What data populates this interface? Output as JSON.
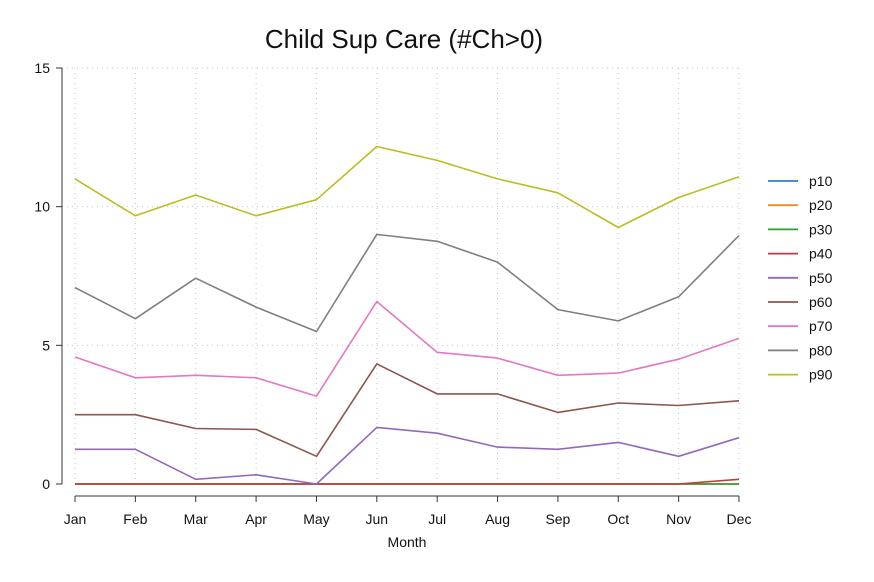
{
  "chart_data": {
    "type": "line",
    "title": "Child Sup Care (#Ch>0)",
    "xlabel": "Month",
    "ylabel": "",
    "ylim": [
      0,
      15
    ],
    "yticks": [
      0,
      5,
      10,
      15
    ],
    "grid": true,
    "legend_position": "right",
    "categories": [
      "Jan",
      "Feb",
      "Mar",
      "Apr",
      "May",
      "Jun",
      "Jul",
      "Aug",
      "Sep",
      "Oct",
      "Nov",
      "Dec"
    ],
    "series": [
      {
        "name": "p10",
        "color": "#3a78c9",
        "values": [
          0,
          0,
          0,
          0,
          0,
          0,
          0,
          0,
          0,
          0,
          0,
          0
        ]
      },
      {
        "name": "p20",
        "color": "#f28a1e",
        "values": [
          0,
          0,
          0,
          0,
          0,
          0,
          0,
          0,
          0,
          0,
          0,
          0
        ]
      },
      {
        "name": "p30",
        "color": "#2ca02c",
        "values": [
          0,
          0,
          0,
          0,
          0,
          0,
          0,
          0,
          0,
          0,
          0,
          0
        ]
      },
      {
        "name": "p40",
        "color": "#c23b3b",
        "values": [
          0,
          0,
          0,
          0,
          0,
          0,
          0,
          0,
          0,
          0,
          0,
          0.17
        ]
      },
      {
        "name": "p50",
        "color": "#9467bd",
        "values": [
          1.25,
          1.25,
          0.17,
          0.33,
          0,
          2.04,
          1.83,
          1.33,
          1.25,
          1.5,
          1.0,
          1.67
        ]
      },
      {
        "name": "p60",
        "color": "#8c564b",
        "values": [
          2.5,
          2.5,
          2.0,
          1.97,
          1.0,
          4.33,
          3.25,
          3.25,
          2.58,
          2.92,
          2.83,
          3.0
        ]
      },
      {
        "name": "p70",
        "color": "#e377c2",
        "values": [
          4.58,
          3.83,
          3.92,
          3.83,
          3.17,
          6.58,
          4.75,
          4.54,
          3.92,
          4.0,
          4.5,
          5.25
        ]
      },
      {
        "name": "p80",
        "color": "#7f7f7f",
        "values": [
          7.08,
          5.96,
          7.42,
          6.38,
          5.5,
          9.0,
          8.75,
          8.0,
          6.29,
          5.88,
          6.75,
          8.96
        ]
      },
      {
        "name": "p90",
        "color": "#bcbd22",
        "values": [
          11.0,
          9.67,
          10.42,
          9.67,
          10.25,
          12.17,
          11.67,
          11.0,
          10.5,
          9.25,
          10.33,
          11.08
        ]
      }
    ]
  }
}
